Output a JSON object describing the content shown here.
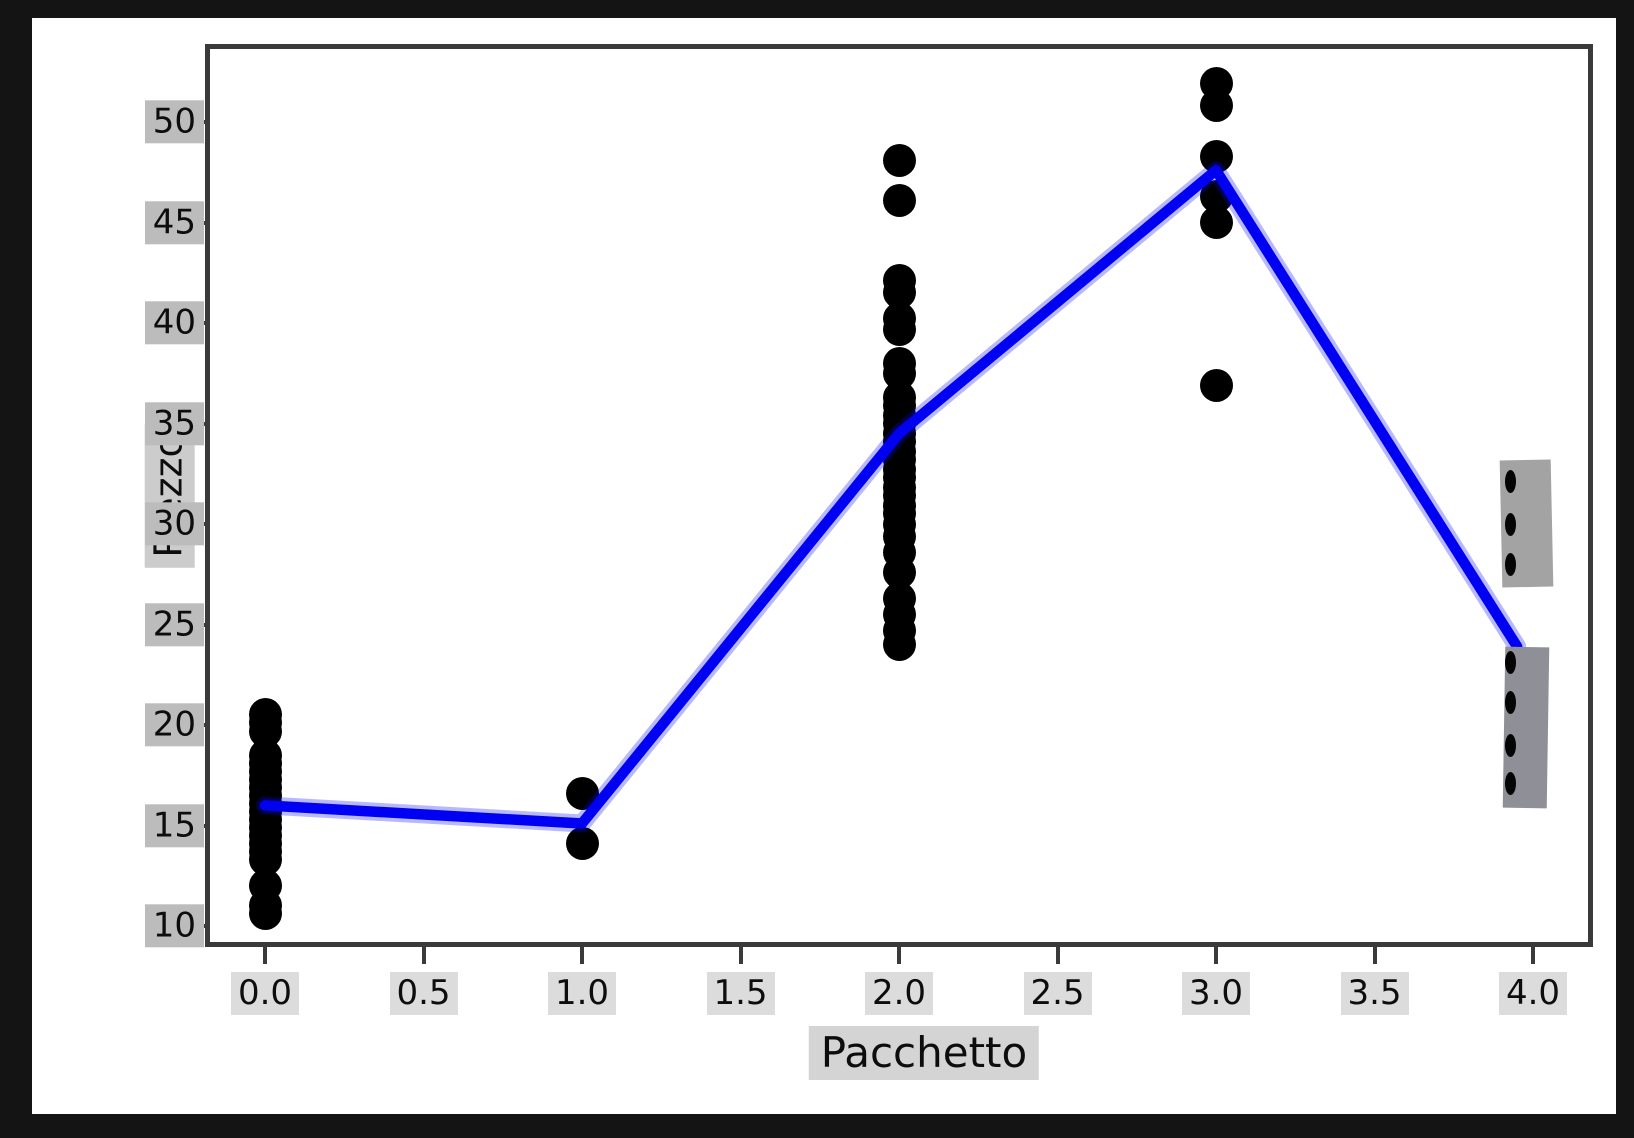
{
  "colors": {
    "frame": "#141414",
    "figure_bg": "#ffffff",
    "spine": "#3a3a3a",
    "scatter_point": "#000000",
    "mean_line": "#0000f2",
    "mask_upper": "#a3a3a3",
    "mask_lower": "#8f8f97",
    "x_label_highlight": "#dcdcdc",
    "y_label_highlight": "#bcbcbc"
  },
  "chart_data": {
    "type": "scatter",
    "title": "",
    "xlabel": "Pacchetto",
    "ylabel": "Prezzo",
    "xlim": [
      -0.19,
      4.19
    ],
    "ylim": [
      8.9,
      53.9
    ],
    "grid": false,
    "legend": null,
    "x_tick_labels": [
      "0.0",
      "0.5",
      "1.0",
      "1.5",
      "2.0",
      "2.5",
      "3.0",
      "3.5",
      "4.0"
    ],
    "y_tick_labels": [
      "10",
      "15",
      "20",
      "25",
      "30",
      "35",
      "40",
      "45",
      "50"
    ],
    "scatter_clusters": [
      {
        "x": 0,
        "values": [
          20.5,
          20.1,
          19.7,
          18.5,
          18.1,
          17.7,
          17.3,
          16.9,
          16.5,
          16.1,
          15.7,
          15.3,
          14.9,
          14.5,
          14.1,
          13.7,
          13.3,
          12.0,
          11.0,
          10.6
        ]
      },
      {
        "x": 1,
        "values": [
          16.6,
          14.1
        ]
      },
      {
        "x": 2,
        "values": [
          48.1,
          46.1,
          42.1,
          41.5,
          40.2,
          39.7,
          38.0,
          37.5,
          36.3,
          35.9,
          35.4,
          35.0,
          34.5,
          34.1,
          33.6,
          33.2,
          32.7,
          32.3,
          31.8,
          31.4,
          30.9,
          30.5,
          30.0,
          29.4,
          28.6,
          27.6,
          26.3,
          25.5,
          24.7,
          24.0
        ]
      },
      {
        "x": 3,
        "values": [
          51.9,
          50.8,
          48.3,
          46.3,
          45.0,
          36.9
        ]
      }
    ],
    "mean_line": {
      "points": [
        [
          0,
          16.0
        ],
        [
          1,
          15.1
        ],
        [
          2,
          34.5
        ],
        [
          3,
          47.6
        ],
        [
          3.95,
          23.9
        ]
      ]
    },
    "masked_overlays": [
      {
        "x_range": [
          3.9,
          4.06
        ],
        "y_range": [
          26.9,
          33.2
        ],
        "tilt_deg": -1.2,
        "point_x": 3.93,
        "point_values": [
          32.1,
          30.0,
          28.0
        ]
      },
      {
        "x_range": [
          3.91,
          4.05
        ],
        "y_range": [
          15.9,
          23.9
        ],
        "tilt_deg": 0.9,
        "point_x": 3.93,
        "point_values": [
          23.1,
          21.1,
          19.0,
          17.1
        ]
      }
    ]
  }
}
